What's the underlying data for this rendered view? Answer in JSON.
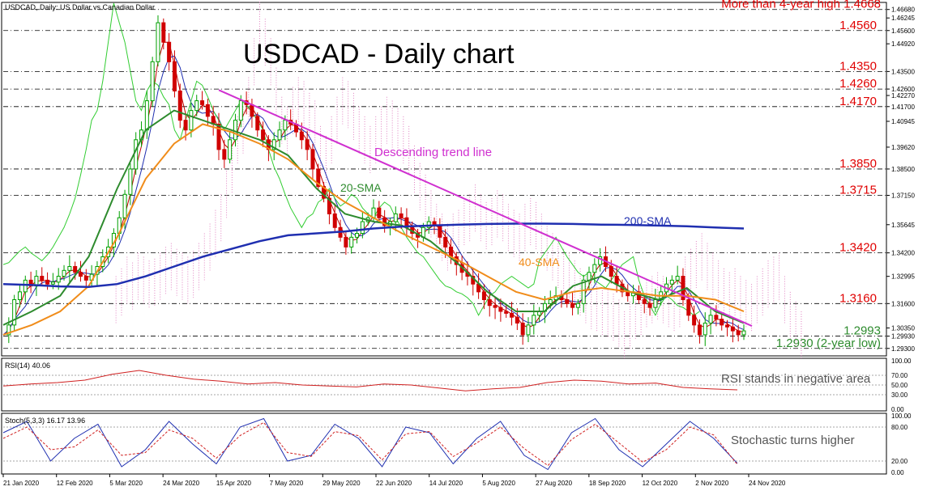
{
  "header": {
    "symbol_line": "USDCAD, Daily:  US Dollar vs Canadian Dollar",
    "chart_title": "USDCAD - Daily chart"
  },
  "colors": {
    "bull": "#00a000",
    "bear": "#d00000",
    "sma20": "#2e8b2e",
    "sma40": "#f08c1a",
    "sma200": "#1f2fb0",
    "trend": "#d030d0",
    "level_label": "#e00000",
    "annot_gray": "#555555",
    "rsi": "#d02020",
    "stoch_main": "#1f2fb0",
    "stoch_signal": "#d02020",
    "tenkan": "#c00000",
    "kijun": "#1f2fb0",
    "chikou": "#32cd32",
    "cloud_a": "#7fc8e8",
    "cloud_b": "#e080c0"
  },
  "chart_data": [
    {
      "type": "candlestick",
      "title": "USDCAD - Daily chart",
      "subtitle": "USDCAD, Daily:  US Dollar vs Canadian Dollar",
      "ylim": [
        1.29,
        1.47
      ],
      "x_ticks": [
        "21 Jan 2020",
        "12 Feb 2020",
        "5 Mar 2020",
        "24 Mar 2020",
        "15 Apr 2020",
        "7 May 2020",
        "29 May 2020",
        "22 Jun 2020",
        "14 Jul 2020",
        "5 Aug 2020",
        "27 Aug 2020",
        "18 Sep 2020",
        "12 Oct 2020",
        "2 Nov 2020",
        "24 Nov 2020"
      ],
      "y_ticks": [
        "1.46680",
        "1.46245",
        "1.45600",
        "1.44920",
        "1.43500",
        "1.42600",
        "1.42270",
        "1.41700",
        "1.40945",
        "1.39620",
        "1.38500",
        "1.37150",
        "1.35645",
        "1.34200",
        "1.32995",
        "1.31600",
        "1.30350",
        "1.29930",
        "1.29300"
      ],
      "price_path": [
        1.3,
        1.305,
        1.318,
        1.322,
        1.328,
        1.325,
        1.33,
        1.328,
        1.326,
        1.327,
        1.33,
        1.333,
        1.335,
        1.332,
        1.33,
        1.328,
        1.331,
        1.335,
        1.34,
        1.345,
        1.352,
        1.36,
        1.372,
        1.385,
        1.4,
        1.405,
        1.42,
        1.44,
        1.46,
        1.45,
        1.44,
        1.425,
        1.41,
        1.405,
        1.415,
        1.42,
        1.418,
        1.412,
        1.408,
        1.395,
        1.39,
        1.4,
        1.41,
        1.42,
        1.418,
        1.412,
        1.405,
        1.4,
        1.395,
        1.4,
        1.405,
        1.41,
        1.408,
        1.404,
        1.4,
        1.395,
        1.385,
        1.376,
        1.37,
        1.362,
        1.355,
        1.35,
        1.345,
        1.35,
        1.352,
        1.358,
        1.36,
        1.365,
        1.36,
        1.356,
        1.358,
        1.362,
        1.36,
        1.355,
        1.352,
        1.35,
        1.355,
        1.358,
        1.356,
        1.35,
        1.345,
        1.34,
        1.336,
        1.332,
        1.33,
        1.326,
        1.322,
        1.318,
        1.315,
        1.314,
        1.312,
        1.311,
        1.309,
        1.306,
        1.3,
        1.305,
        1.31,
        1.312,
        1.316,
        1.318,
        1.32,
        1.318,
        1.316,
        1.314,
        1.316,
        1.328,
        1.332,
        1.336,
        1.34,
        1.335,
        1.33,
        1.326,
        1.322,
        1.32,
        1.322,
        1.318,
        1.316,
        1.314,
        1.318,
        1.322,
        1.326,
        1.328,
        1.33,
        1.318,
        1.31,
        1.305,
        1.3,
        1.306,
        1.31,
        1.308,
        1.305,
        1.304,
        1.302,
        1.3,
        1.302
      ],
      "series": [
        {
          "name": "20-SMA",
          "values": [
            1.305,
            1.312,
            1.32,
            1.34,
            1.375,
            1.405,
            1.415,
            1.41,
            1.405,
            1.4,
            1.392,
            1.375,
            1.362,
            1.358,
            1.356,
            1.348,
            1.336,
            1.322,
            1.312,
            1.312,
            1.325,
            1.33,
            1.322,
            1.318,
            1.324,
            1.312,
            1.306
          ]
        },
        {
          "name": "40-SMA",
          "values": [
            1.3,
            1.305,
            1.312,
            1.325,
            1.35,
            1.38,
            1.398,
            1.408,
            1.404,
            1.398,
            1.39,
            1.378,
            1.368,
            1.36,
            1.352,
            1.345,
            1.338,
            1.33,
            1.322,
            1.318,
            1.322,
            1.324,
            1.322,
            1.32,
            1.32,
            1.318,
            1.312
          ]
        },
        {
          "name": "200-SMA",
          "values": [
            1.326,
            1.3255,
            1.3248,
            1.3245,
            1.326,
            1.33,
            1.335,
            1.34,
            1.344,
            1.348,
            1.351,
            1.352,
            1.353,
            1.3545,
            1.3555,
            1.356,
            1.3565,
            1.3568,
            1.357,
            1.357,
            1.3568,
            1.3565,
            1.3563,
            1.356,
            1.3556,
            1.355,
            1.3545
          ]
        },
        {
          "name": "Descending trend line",
          "points": [
            [
              1.4255
            ],
            [
              1.3045
            ]
          ]
        }
      ],
      "levels": [
        {
          "value": 1.4668,
          "label": "More than 4-year high 1.4668"
        },
        {
          "value": 1.456,
          "label": "1.4560"
        },
        {
          "value": 1.435,
          "label": "1.4350"
        },
        {
          "value": 1.426,
          "label": "1.4260"
        },
        {
          "value": 1.417,
          "label": "1.4170"
        },
        {
          "value": 1.385,
          "label": "1.3850"
        },
        {
          "value": 1.3715,
          "label": "1.3715"
        },
        {
          "value": 1.342,
          "label": "1.3420"
        },
        {
          "value": 1.316,
          "label": "1.3160"
        },
        {
          "value": 1.2993,
          "label": "1.2993"
        },
        {
          "value": 1.293,
          "label": "1.2930 (2-year low)"
        }
      ],
      "annotations": [
        "Descending trend line",
        "20-SMA",
        "40-SMA",
        "200-SMA"
      ]
    },
    {
      "type": "line",
      "title": "RSI(14) 40.06",
      "ylim": [
        0,
        100
      ],
      "y_ticks": [
        "100.00",
        "70.00",
        "50.00",
        "30.00",
        "0.00"
      ],
      "series": [
        {
          "name": "RSI(14)",
          "values": [
            48,
            52,
            55,
            60,
            72,
            80,
            70,
            62,
            58,
            52,
            55,
            50,
            48,
            46,
            52,
            50,
            44,
            38,
            42,
            45,
            55,
            60,
            58,
            52,
            54,
            45,
            42,
            40
          ]
        }
      ],
      "annotation": "RSI stands in negative area"
    },
    {
      "type": "line",
      "title": "Stoch(5,3,3) 16.17 13.96",
      "ylim": [
        0,
        100
      ],
      "y_ticks": [
        "100.00",
        "80.00",
        "20.00",
        "0.00"
      ],
      "series": [
        {
          "name": "Stoch %K",
          "values": [
            70,
            90,
            20,
            60,
            85,
            10,
            40,
            90,
            50,
            15,
            80,
            95,
            20,
            30,
            85,
            60,
            10,
            80,
            70,
            15,
            60,
            90,
            30,
            5,
            70,
            95,
            40,
            10,
            50,
            90,
            60,
            16
          ]
        },
        {
          "name": "Stoch %D",
          "values": [
            60,
            80,
            40,
            45,
            75,
            30,
            35,
            75,
            60,
            25,
            65,
            88,
            35,
            28,
            72,
            65,
            22,
            68,
            72,
            28,
            52,
            80,
            42,
            12,
            58,
            85,
            52,
            18,
            40,
            80,
            66,
            14
          ]
        }
      ],
      "annotation": "Stochastic turns higher"
    }
  ]
}
